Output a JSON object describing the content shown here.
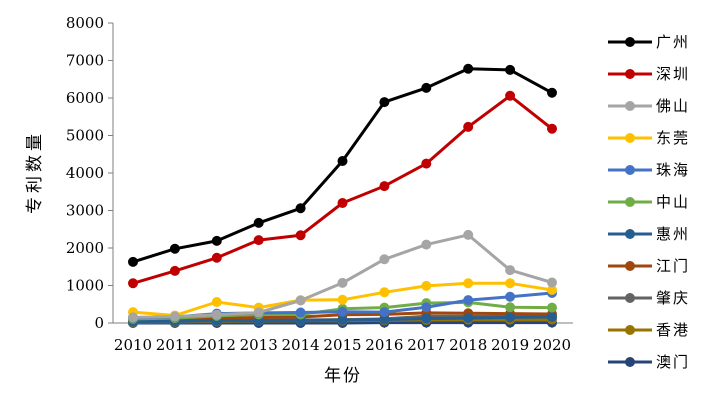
{
  "chart_data": {
    "type": "line",
    "title": "",
    "xlabel": "年份",
    "ylabel": "专利数量",
    "ylim": [
      0,
      8000
    ],
    "yticks": [
      0,
      1000,
      2000,
      3000,
      4000,
      5000,
      6000,
      7000,
      8000
    ],
    "grid": false,
    "legend": "right",
    "x": [
      2010,
      2011,
      2012,
      2013,
      2014,
      2015,
      2016,
      2017,
      2018,
      2019,
      2020
    ],
    "series": [
      {
        "name": "广州",
        "color": "#000000",
        "values": [
          1630,
          1980,
          2190,
          2670,
          3060,
          4320,
          5890,
          6270,
          6780,
          6750,
          6140
        ]
      },
      {
        "name": "深圳",
        "color": "#c00000",
        "values": [
          1060,
          1390,
          1740,
          2210,
          2340,
          3200,
          3650,
          4250,
          5230,
          6060,
          5180
        ]
      },
      {
        "name": "佛山",
        "color": "#a5a5a5",
        "values": [
          150,
          170,
          220,
          280,
          600,
          1070,
          1700,
          2090,
          2350,
          1410,
          1080
        ]
      },
      {
        "name": "东莞",
        "color": "#ffc000",
        "values": [
          290,
          200,
          560,
          410,
          610,
          620,
          820,
          990,
          1060,
          1060,
          880
        ]
      },
      {
        "name": "珠海",
        "color": "#4472c4",
        "values": [
          140,
          160,
          250,
          270,
          280,
          300,
          290,
          420,
          610,
          700,
          800
        ]
      },
      {
        "name": "中山",
        "color": "#70ad47",
        "values": [
          110,
          130,
          190,
          230,
          230,
          380,
          410,
          530,
          550,
          420,
          410
        ]
      },
      {
        "name": "惠州",
        "color": "#255e91",
        "values": [
          40,
          50,
          60,
          60,
          70,
          80,
          90,
          120,
          130,
          150,
          160
        ]
      },
      {
        "name": "江门",
        "color": "#9e480e",
        "values": [
          90,
          100,
          130,
          150,
          160,
          220,
          230,
          270,
          260,
          250,
          240
        ]
      },
      {
        "name": "肇庆",
        "color": "#636363",
        "values": [
          30,
          40,
          60,
          80,
          80,
          90,
          110,
          180,
          180,
          180,
          170
        ]
      },
      {
        "name": "香港",
        "color": "#997300",
        "values": [
          20,
          30,
          40,
          50,
          60,
          60,
          70,
          80,
          90,
          90,
          90
        ]
      },
      {
        "name": "澳门",
        "color": "#264478",
        "values": [
          0,
          0,
          0,
          0,
          0,
          0,
          10,
          10,
          10,
          10,
          10
        ]
      }
    ]
  }
}
